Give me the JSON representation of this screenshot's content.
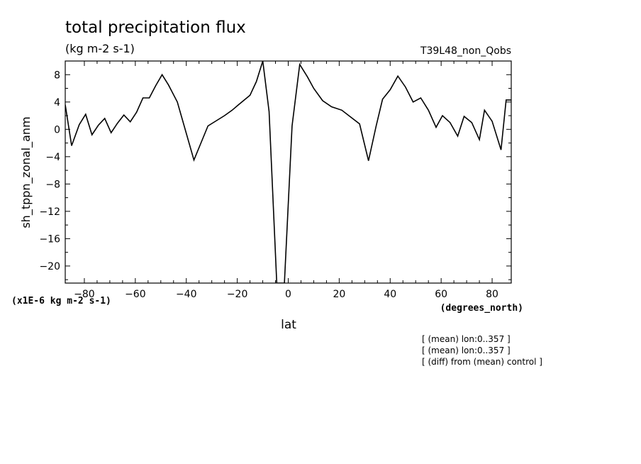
{
  "chart_data": {
    "type": "line",
    "title": "total precipitation flux",
    "subtitle": "(kg m-2 s-1)",
    "run_label": "T39L48_non_Qobs",
    "xlabel": "lat",
    "xunits": "(degrees_north)",
    "ylabel": "sh_tppn_zonal_anm",
    "yscale_note": "(x1E-6 kg m-2 s-1)",
    "xlim": [
      -87.5,
      87.5
    ],
    "ylim": [
      -22.5,
      10
    ],
    "xticks": [
      -80,
      -60,
      -40,
      -20,
      0,
      20,
      40,
      60,
      80
    ],
    "yticks": [
      8,
      4,
      0,
      -4,
      -8,
      -12,
      -16,
      -20
    ],
    "grid": false,
    "notes": [
      "[ (mean) lon:0..357 ]",
      "[ (mean) lon:0..357 ]",
      "[ (diff) from (mean) control ]"
    ],
    "series": [
      {
        "x": [
          -87.5,
          -85.0,
          -82.0,
          -79.5,
          -77.0,
          -74.5,
          -72.0,
          -69.5,
          -67.0,
          -64.5,
          -62.0,
          -59.5,
          -57.0,
          -54.5,
          -52.0,
          -49.5,
          -47.0,
          -43.5,
          -37.0,
          -31.5,
          -25.0,
          -22.0,
          -19.5,
          -15.0,
          -12.5,
          -10.0,
          -7.5,
          -4.5,
          -1.5,
          1.5,
          4.5,
          7.5,
          10.0,
          13.5,
          17.0,
          21.0,
          24.5,
          28.0,
          31.5,
          34.5,
          37.0,
          40.0,
          43.0,
          46.0,
          49.0,
          52.0,
          55.0,
          58.0,
          60.5,
          63.5,
          66.5,
          69.0,
          72.0,
          75.0,
          77.0,
          80.0,
          83.5,
          85.5,
          87.5
        ],
        "y": [
          3.6,
          -2.4,
          0.7,
          2.2,
          -0.8,
          0.6,
          1.6,
          -0.5,
          0.9,
          2.1,
          1.1,
          2.5,
          4.6,
          4.6,
          6.4,
          8.0,
          6.5,
          4.0,
          -4.5,
          0.5,
          2.0,
          2.8,
          3.6,
          5.0,
          7.0,
          10.0,
          2.6,
          -22.5,
          -22.5,
          0.5,
          9.5,
          7.7,
          6.0,
          4.2,
          3.3,
          2.8,
          1.8,
          0.8,
          -4.6,
          0.5,
          4.4,
          5.8,
          7.8,
          6.2,
          4.0,
          4.6,
          2.8,
          0.3,
          2.0,
          1.0,
          -1.0,
          1.9,
          1.0,
          -1.5,
          2.8,
          1.2,
          -3.0,
          4.3,
          4.3
        ]
      }
    ]
  }
}
